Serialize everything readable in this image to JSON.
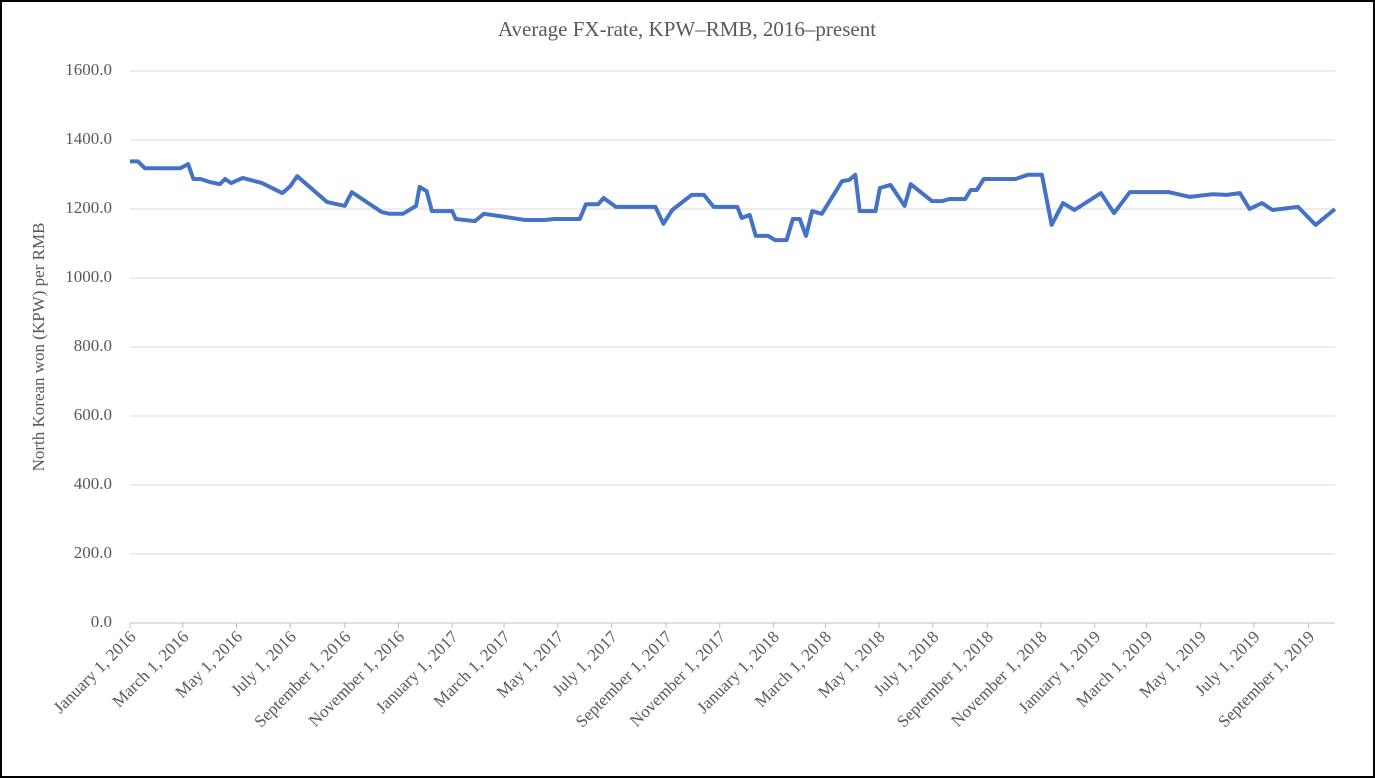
{
  "chart_data": {
    "type": "line",
    "title": "Average FX-rate, KPW–RMB, 2016–present",
    "y_label": "North Korean won (KPW) per RMB",
    "color": "#4472c4",
    "grid": true,
    "ylim": [
      0,
      1600
    ],
    "yticks": [
      {
        "value": 0,
        "label": "0.0"
      },
      {
        "value": 200,
        "label": "200.0"
      },
      {
        "value": 400,
        "label": "400.0"
      },
      {
        "value": 600,
        "label": "600.0"
      },
      {
        "value": 800,
        "label": "800.0"
      },
      {
        "value": 1000,
        "label": "1000.0"
      },
      {
        "value": 1200,
        "label": "1200.0"
      },
      {
        "value": 1400,
        "label": "1400.0"
      },
      {
        "value": 1600,
        "label": "1600.0"
      }
    ],
    "xlim": [
      "2016-01-01",
      "2019-10-01"
    ],
    "xticks": [
      {
        "value": "2016-01-01",
        "label": "January 1, 2016"
      },
      {
        "value": "2016-03-01",
        "label": "March 1, 2016"
      },
      {
        "value": "2016-05-01",
        "label": "May 1, 2016"
      },
      {
        "value": "2016-07-01",
        "label": "July 1, 2016"
      },
      {
        "value": "2016-09-01",
        "label": "September 1, 2016"
      },
      {
        "value": "2016-11-01",
        "label": "November 1, 2016"
      },
      {
        "value": "2017-01-01",
        "label": "January 1, 2017"
      },
      {
        "value": "2017-03-01",
        "label": "March 1, 2017"
      },
      {
        "value": "2017-05-01",
        "label": "May 1, 2017"
      },
      {
        "value": "2017-07-01",
        "label": "July 1, 2017"
      },
      {
        "value": "2017-09-01",
        "label": "September 1, 2017"
      },
      {
        "value": "2017-11-01",
        "label": "November 1, 2017"
      },
      {
        "value": "2018-01-01",
        "label": "January 1, 2018"
      },
      {
        "value": "2018-03-01",
        "label": "March 1, 2018"
      },
      {
        "value": "2018-05-01",
        "label": "May 1, 2018"
      },
      {
        "value": "2018-07-01",
        "label": "July 1, 2018"
      },
      {
        "value": "2018-09-01",
        "label": "September 1, 2018"
      },
      {
        "value": "2018-11-01",
        "label": "November 1, 2018"
      },
      {
        "value": "2019-01-01",
        "label": "January 1, 2019"
      },
      {
        "value": "2019-03-01",
        "label": "March 1, 2019"
      },
      {
        "value": "2019-05-01",
        "label": "May 1, 2019"
      },
      {
        "value": "2019-07-01",
        "label": "July 1, 2019"
      },
      {
        "value": "2019-09-01",
        "label": "September 1, 2019"
      }
    ],
    "x": [
      "2016-01-01",
      "2016-01-10",
      "2016-01-18",
      "2016-02-27",
      "2016-03-07",
      "2016-03-13",
      "2016-03-21",
      "2016-04-01",
      "2016-04-12",
      "2016-04-18",
      "2016-04-25",
      "2016-05-08",
      "2016-05-30",
      "2016-06-22",
      "2016-07-01",
      "2016-07-09",
      "2016-08-12",
      "2016-09-01",
      "2016-09-09",
      "2016-10-13",
      "2016-10-22",
      "2016-11-06",
      "2016-11-21",
      "2016-11-25",
      "2016-12-03",
      "2016-12-09",
      "2017-01-01",
      "2017-01-05",
      "2017-01-27",
      "2017-02-06",
      "2017-03-02",
      "2017-03-25",
      "2017-04-16",
      "2017-04-27",
      "2017-05-26",
      "2017-06-02",
      "2017-06-16",
      "2017-06-22",
      "2017-07-06",
      "2017-08-20",
      "2017-08-29",
      "2017-09-08",
      "2017-09-30",
      "2017-10-14",
      "2017-10-25",
      "2017-11-21",
      "2017-11-26",
      "2017-12-05",
      "2017-12-12",
      "2017-12-26",
      "2018-01-03",
      "2018-01-16",
      "2018-01-23",
      "2018-01-31",
      "2018-02-07",
      "2018-02-14",
      "2018-02-25",
      "2018-03-20",
      "2018-03-28",
      "2018-04-04",
      "2018-04-09",
      "2018-04-27",
      "2018-05-02",
      "2018-05-14",
      "2018-05-30",
      "2018-06-06",
      "2018-06-30",
      "2018-07-12",
      "2018-07-20",
      "2018-08-07",
      "2018-08-13",
      "2018-08-20",
      "2018-08-28",
      "2018-10-03",
      "2018-10-17",
      "2018-11-02",
      "2018-11-13",
      "2018-11-26",
      "2018-12-09",
      "2019-01-08",
      "2019-01-23",
      "2019-02-10",
      "2019-03-26",
      "2019-04-19",
      "2019-05-15",
      "2019-05-31",
      "2019-06-15",
      "2019-06-26",
      "2019-07-10",
      "2019-07-22",
      "2019-08-20",
      "2019-09-09",
      "2019-10-01"
    ],
    "values": [
      1338,
      1338,
      1318,
      1318,
      1330,
      1287,
      1287,
      1278,
      1272,
      1287,
      1275,
      1290,
      1275,
      1246,
      1266,
      1295,
      1220,
      1209,
      1249,
      1191,
      1186,
      1186,
      1209,
      1264,
      1252,
      1194,
      1194,
      1171,
      1165,
      1186,
      1177,
      1168,
      1168,
      1171,
      1171,
      1214,
      1214,
      1232,
      1206,
      1206,
      1157,
      1197,
      1241,
      1241,
      1206,
      1206,
      1174,
      1183,
      1122,
      1122,
      1110,
      1110,
      1171,
      1171,
      1122,
      1194,
      1186,
      1281,
      1284,
      1299,
      1194,
      1194,
      1261,
      1270,
      1209,
      1272,
      1223,
      1223,
      1229,
      1229,
      1255,
      1255,
      1287,
      1287,
      1299,
      1299,
      1154,
      1217,
      1197,
      1246,
      1188,
      1249,
      1249,
      1235,
      1243,
      1241,
      1246,
      1200,
      1217,
      1197,
      1206,
      1154,
      1200
    ]
  }
}
